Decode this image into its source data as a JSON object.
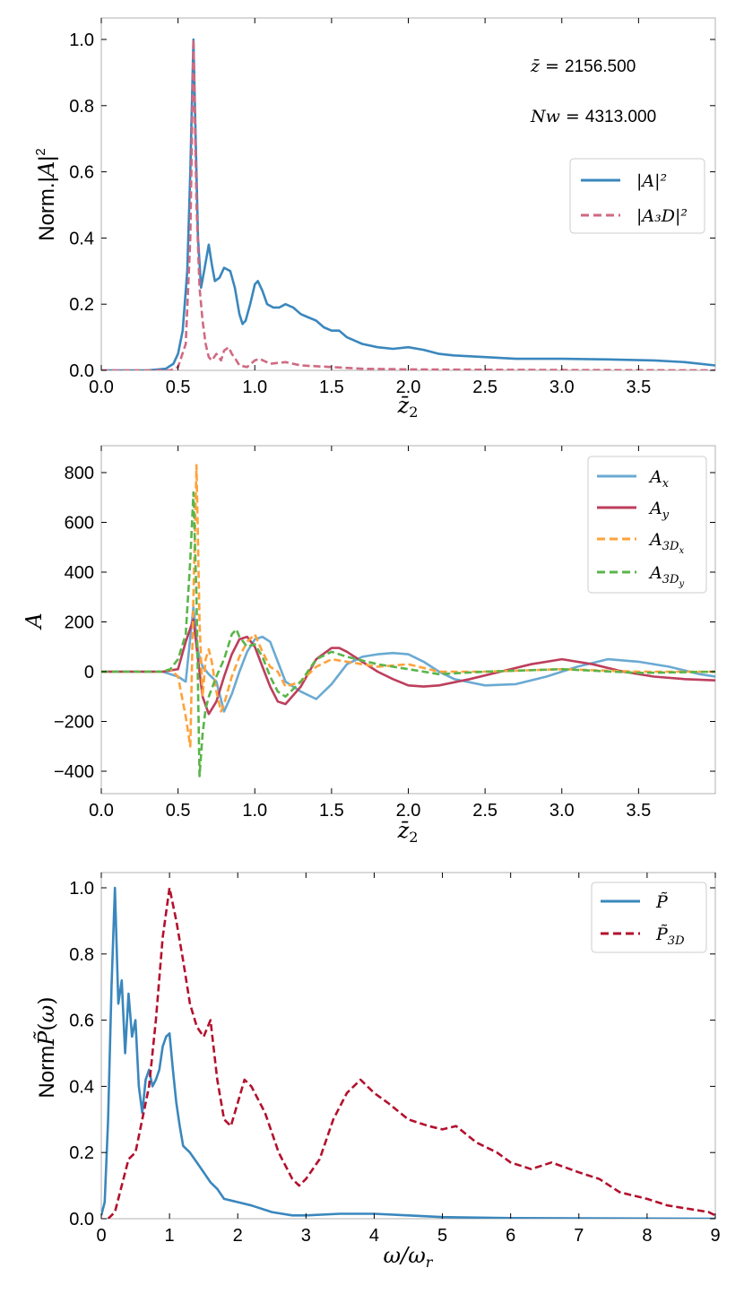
{
  "colors": {
    "blue": "#3a87bd",
    "pink": "#d06a82",
    "light_blue": "#6aaad2",
    "crimson": "#bd3e5c",
    "orange": "#ffa23a",
    "green": "#5ab54a",
    "darkred": "#b3112e",
    "frame": "#b0b0b0"
  },
  "chart_data": [
    {
      "type": "line",
      "title": "",
      "xlabel": "z̄₂",
      "ylabel": "Norm.|A|²",
      "xlim": [
        0,
        4
      ],
      "ylim": [
        0,
        1.05
      ],
      "xticks": [
        "0.0",
        "0.5",
        "1.0",
        "1.5",
        "2.0",
        "2.5",
        "3.0",
        "3.5"
      ],
      "yticks": [
        "0.0",
        "0.2",
        "0.4",
        "0.6",
        "0.8",
        "1.0"
      ],
      "legend_position": "center-right",
      "annotations": [
        {
          "label": "z̄ = ",
          "value": "2156.500"
        },
        {
          "label": "Nw = ",
          "value": "4313.000"
        }
      ],
      "series": [
        {
          "name": "|A|²",
          "style": "solid",
          "color": "#3a87bd",
          "x": [
            0,
            0.3,
            0.42,
            0.47,
            0.5,
            0.53,
            0.56,
            0.58,
            0.6,
            0.615,
            0.63,
            0.65,
            0.67,
            0.7,
            0.72,
            0.74,
            0.77,
            0.8,
            0.84,
            0.87,
            0.9,
            0.92,
            0.94,
            0.97,
            1.0,
            1.02,
            1.05,
            1.08,
            1.12,
            1.16,
            1.2,
            1.25,
            1.3,
            1.35,
            1.4,
            1.45,
            1.5,
            1.55,
            1.6,
            1.65,
            1.7,
            1.8,
            1.9,
            2.0,
            2.1,
            2.2,
            2.3,
            2.5,
            2.7,
            3.0,
            3.3,
            3.6,
            3.8,
            4.0
          ],
          "y": [
            0,
            0,
            0.005,
            0.02,
            0.05,
            0.12,
            0.3,
            0.6,
            1.0,
            0.7,
            0.4,
            0.25,
            0.3,
            0.38,
            0.32,
            0.27,
            0.28,
            0.31,
            0.3,
            0.25,
            0.17,
            0.14,
            0.15,
            0.2,
            0.26,
            0.27,
            0.24,
            0.2,
            0.19,
            0.19,
            0.2,
            0.19,
            0.17,
            0.16,
            0.15,
            0.13,
            0.12,
            0.12,
            0.1,
            0.09,
            0.08,
            0.07,
            0.065,
            0.07,
            0.062,
            0.05,
            0.045,
            0.04,
            0.035,
            0.035,
            0.033,
            0.03,
            0.025,
            0.015
          ]
        },
        {
          "name": "|A₃D|²",
          "style": "dashed",
          "color": "#d06a82",
          "x": [
            0,
            0.45,
            0.5,
            0.55,
            0.58,
            0.6,
            0.62,
            0.64,
            0.66,
            0.68,
            0.7,
            0.72,
            0.75,
            0.78,
            0.8,
            0.83,
            0.85,
            0.88,
            0.9,
            0.95,
            1.0,
            1.03,
            1.1,
            1.2,
            1.3,
            1.5,
            1.7,
            2.0,
            2.5,
            3.0,
            4.0
          ],
          "y": [
            0,
            0,
            0.01,
            0.08,
            0.4,
            1.0,
            0.5,
            0.25,
            0.15,
            0.08,
            0.04,
            0.03,
            0.05,
            0.03,
            0.06,
            0.07,
            0.05,
            0.03,
            0.015,
            0.01,
            0.03,
            0.035,
            0.02,
            0.025,
            0.015,
            0.01,
            0.005,
            0.003,
            0.002,
            0.001,
            0
          ]
        }
      ]
    },
    {
      "type": "line",
      "title": "",
      "xlabel": "z̄₂",
      "ylabel": "A",
      "xlim": [
        0,
        4
      ],
      "ylim": [
        -490,
        910
      ],
      "xticks": [
        "0.0",
        "0.5",
        "1.0",
        "1.5",
        "2.0",
        "2.5",
        "3.0",
        "3.5"
      ],
      "yticks": [
        "−400",
        "−200",
        "0",
        "200",
        "400",
        "600",
        "800"
      ],
      "legend_position": "top-right",
      "series": [
        {
          "name": "Ax",
          "style": "solid",
          "color": "#6aaad2",
          "x": [
            0,
            0.4,
            0.5,
            0.55,
            0.6,
            0.63,
            0.66,
            0.7,
            0.75,
            0.8,
            0.85,
            0.9,
            0.95,
            1.0,
            1.05,
            1.1,
            1.15,
            1.2,
            1.3,
            1.4,
            1.5,
            1.6,
            1.7,
            1.8,
            1.9,
            2.0,
            2.1,
            2.2,
            2.3,
            2.5,
            2.7,
            2.9,
            3.1,
            3.3,
            3.5,
            3.7,
            3.9,
            4.0
          ],
          "y": [
            0,
            0,
            -20,
            -40,
            260,
            80,
            20,
            -10,
            -40,
            -160,
            -90,
            0,
            80,
            130,
            140,
            120,
            40,
            -40,
            -80,
            -110,
            -50,
            30,
            60,
            70,
            75,
            70,
            40,
            0,
            -30,
            -55,
            -50,
            -20,
            20,
            50,
            40,
            20,
            -10,
            -20
          ]
        },
        {
          "name": "Ay",
          "style": "solid",
          "color": "#bd3e5c",
          "x": [
            0,
            0.4,
            0.5,
            0.55,
            0.6,
            0.63,
            0.66,
            0.7,
            0.75,
            0.8,
            0.85,
            0.9,
            0.95,
            1.0,
            1.05,
            1.1,
            1.15,
            1.2,
            1.3,
            1.4,
            1.5,
            1.55,
            1.6,
            1.7,
            1.8,
            1.9,
            2.0,
            2.1,
            2.2,
            2.4,
            2.6,
            2.8,
            3.0,
            3.2,
            3.4,
            3.6,
            3.8,
            4.0
          ],
          "y": [
            0,
            0,
            10,
            120,
            210,
            50,
            -100,
            -170,
            -120,
            -20,
            70,
            130,
            140,
            100,
            20,
            -60,
            -120,
            -130,
            -60,
            50,
            95,
            95,
            80,
            40,
            0,
            -30,
            -55,
            -60,
            -55,
            -30,
            0,
            30,
            50,
            30,
            0,
            -20,
            -30,
            -35
          ]
        },
        {
          "name": "A3Dx",
          "style": "dashed",
          "color": "#ffa23a",
          "x": [
            0,
            0.4,
            0.45,
            0.5,
            0.55,
            0.58,
            0.6,
            0.62,
            0.64,
            0.66,
            0.68,
            0.7,
            0.72,
            0.75,
            0.78,
            0.8,
            0.85,
            0.9,
            0.95,
            1.0,
            1.05,
            1.1,
            1.15,
            1.2,
            1.3,
            1.4,
            1.5,
            1.6,
            1.8,
            2.0,
            2.2,
            2.5,
            3.0,
            3.5,
            4.0
          ],
          "y": [
            0,
            0,
            10,
            -20,
            -180,
            -300,
            300,
            830,
            200,
            -100,
            50,
            90,
            40,
            -80,
            -160,
            -130,
            -20,
            60,
            120,
            150,
            80,
            20,
            0,
            -60,
            -40,
            20,
            50,
            40,
            20,
            30,
            0,
            0,
            10,
            0,
            0
          ]
        },
        {
          "name": "A3Dy",
          "style": "dashed",
          "color": "#5ab54a",
          "x": [
            0,
            0.4,
            0.45,
            0.5,
            0.55,
            0.58,
            0.6,
            0.62,
            0.64,
            0.66,
            0.68,
            0.7,
            0.75,
            0.8,
            0.85,
            0.88,
            0.9,
            0.95,
            1.0,
            1.05,
            1.1,
            1.15,
            1.2,
            1.3,
            1.4,
            1.5,
            1.6,
            1.8,
            2.0,
            2.2,
            2.5,
            3.0,
            3.5,
            4.0
          ],
          "y": [
            0,
            0,
            10,
            50,
            150,
            450,
            720,
            300,
            -420,
            -250,
            -150,
            -100,
            -20,
            50,
            150,
            170,
            140,
            100,
            110,
            60,
            -20,
            -80,
            -100,
            -40,
            50,
            80,
            60,
            30,
            10,
            -10,
            0,
            10,
            -5,
            0
          ]
        }
      ]
    },
    {
      "type": "line",
      "title": "",
      "xlabel": "ω/ωr",
      "ylabel": "Norm P̃(ω)",
      "xlim": [
        0,
        9
      ],
      "ylim": [
        0,
        1.05
      ],
      "xticks": [
        "0",
        "1",
        "2",
        "3",
        "4",
        "5",
        "6",
        "7",
        "8",
        "9"
      ],
      "yticks": [
        "0.0",
        "0.2",
        "0.4",
        "0.6",
        "0.8",
        "1.0"
      ],
      "legend_position": "top-right",
      "series": [
        {
          "name": "P̃",
          "style": "solid",
          "color": "#3a87bd",
          "x": [
            0,
            0.05,
            0.1,
            0.15,
            0.2,
            0.25,
            0.3,
            0.35,
            0.4,
            0.45,
            0.5,
            0.55,
            0.6,
            0.65,
            0.7,
            0.75,
            0.8,
            0.85,
            0.9,
            0.95,
            1.0,
            1.05,
            1.1,
            1.15,
            1.2,
            1.3,
            1.4,
            1.5,
            1.6,
            1.7,
            1.8,
            1.9,
            2.0,
            2.2,
            2.5,
            2.8,
            3.0,
            3.5,
            4.0,
            4.5,
            5.0,
            6.0,
            7.0,
            9.0
          ],
          "y": [
            0.01,
            0.05,
            0.3,
            0.7,
            1.0,
            0.65,
            0.72,
            0.5,
            0.68,
            0.55,
            0.6,
            0.4,
            0.32,
            0.42,
            0.45,
            0.4,
            0.42,
            0.45,
            0.52,
            0.55,
            0.56,
            0.45,
            0.35,
            0.28,
            0.22,
            0.2,
            0.17,
            0.14,
            0.11,
            0.09,
            0.06,
            0.055,
            0.05,
            0.04,
            0.02,
            0.01,
            0.01,
            0.015,
            0.015,
            0.01,
            0.005,
            0.002,
            0.001,
            0.0
          ]
        },
        {
          "name": "P̃₃D",
          "style": "dashed",
          "color": "#b3112e",
          "x": [
            0.1,
            0.2,
            0.3,
            0.4,
            0.5,
            0.6,
            0.7,
            0.8,
            0.9,
            1.0,
            1.05,
            1.1,
            1.2,
            1.3,
            1.4,
            1.5,
            1.6,
            1.7,
            1.8,
            1.9,
            2.0,
            2.1,
            2.2,
            2.4,
            2.6,
            2.8,
            2.9,
            3.0,
            3.2,
            3.4,
            3.6,
            3.7,
            3.8,
            4.0,
            4.2,
            4.5,
            4.8,
            5.0,
            5.2,
            5.5,
            5.8,
            6.0,
            6.3,
            6.6,
            7.0,
            7.3,
            7.6,
            8.0,
            8.3,
            8.6,
            8.9,
            9.0
          ],
          "y": [
            0,
            0.02,
            0.1,
            0.18,
            0.2,
            0.3,
            0.4,
            0.6,
            0.85,
            1.0,
            0.95,
            0.9,
            0.78,
            0.65,
            0.58,
            0.55,
            0.6,
            0.42,
            0.3,
            0.28,
            0.35,
            0.42,
            0.4,
            0.32,
            0.2,
            0.12,
            0.1,
            0.12,
            0.18,
            0.3,
            0.38,
            0.4,
            0.42,
            0.38,
            0.35,
            0.3,
            0.28,
            0.27,
            0.28,
            0.23,
            0.2,
            0.17,
            0.15,
            0.17,
            0.14,
            0.12,
            0.08,
            0.06,
            0.04,
            0.03,
            0.02,
            0.01
          ]
        }
      ]
    }
  ]
}
